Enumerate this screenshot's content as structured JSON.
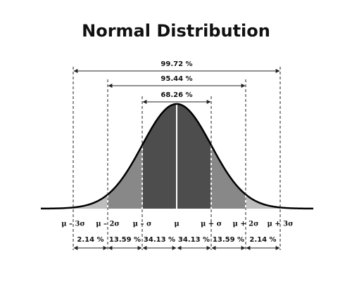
{
  "title": "Normal Distribution",
  "ranges": [
    "99.72 %",
    "95.44 %",
    "68.26 %"
  ],
  "sigma_labels": [
    "μ – 3σ",
    "μ – 2σ",
    "μ – σ",
    "μ",
    "μ + σ",
    "μ + 2σ",
    "μ + 3σ"
  ],
  "segments": [
    "2.14 %",
    "13.59 %",
    "34.13 %",
    "34.13 %",
    "13.59 %",
    "2.14 %"
  ]
}
